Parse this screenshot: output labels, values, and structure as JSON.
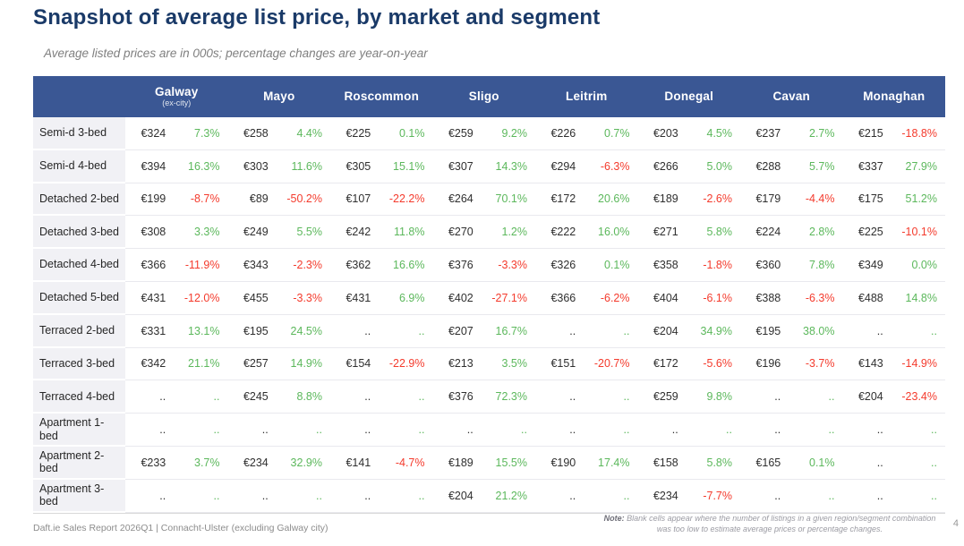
{
  "page": {
    "title": "Snapshot of average list price, by market and segment",
    "subtitle": "Average listed prices are in 000s; percentage changes are year-on-year",
    "footer_left": "Daft.ie Sales Report 2026Q1  | Connacht-Ulster (excluding Galway city)",
    "note_label": "Note:",
    "note_text": "Blank cells appear where the number of listings in a given region/segment combination was too low to estimate average prices or percentage changes.",
    "page_number": "4"
  },
  "colors": {
    "title": "#1a3a68",
    "header_bg": "#3a5794",
    "header_text": "#ffffff",
    "label_bg": "#f1f1f5",
    "price_text": "#2f2f2f",
    "positive": "#5cb85c",
    "negative": "#f43b2d",
    "footer_text": "#8c8c8c"
  },
  "chart_data": {
    "type": "table",
    "title": "Snapshot of average list price, by market and segment",
    "markets": [
      {
        "name": "Galway",
        "sub": "(ex-city)"
      },
      {
        "name": "Mayo",
        "sub": ""
      },
      {
        "name": "Roscommon",
        "sub": ""
      },
      {
        "name": "Sligo",
        "sub": ""
      },
      {
        "name": "Leitrim",
        "sub": ""
      },
      {
        "name": "Donegal",
        "sub": ""
      },
      {
        "name": "Cavan",
        "sub": ""
      },
      {
        "name": "Monaghan",
        "sub": ""
      }
    ],
    "rows": [
      {
        "label": "Semi-d 3-bed",
        "cells": [
          [
            "€324",
            "7.3%"
          ],
          [
            "€258",
            "4.4%"
          ],
          [
            "€225",
            "0.1%"
          ],
          [
            "€259",
            "9.2%"
          ],
          [
            "€226",
            "0.7%"
          ],
          [
            "€203",
            "4.5%"
          ],
          [
            "€237",
            "2.7%"
          ],
          [
            "€215",
            "-18.8%"
          ]
        ]
      },
      {
        "label": "Semi-d 4-bed",
        "cells": [
          [
            "€394",
            "16.3%"
          ],
          [
            "€303",
            "11.6%"
          ],
          [
            "€305",
            "15.1%"
          ],
          [
            "€307",
            "14.3%"
          ],
          [
            "€294",
            "-6.3%"
          ],
          [
            "€266",
            "5.0%"
          ],
          [
            "€288",
            "5.7%"
          ],
          [
            "€337",
            "27.9%"
          ]
        ]
      },
      {
        "label": "Detached 2-bed",
        "cells": [
          [
            "€199",
            "-8.7%"
          ],
          [
            "€89",
            "-50.2%"
          ],
          [
            "€107",
            "-22.2%"
          ],
          [
            "€264",
            "70.1%"
          ],
          [
            "€172",
            "20.6%"
          ],
          [
            "€189",
            "-2.6%"
          ],
          [
            "€179",
            "-4.4%"
          ],
          [
            "€175",
            "51.2%"
          ]
        ]
      },
      {
        "label": "Detached 3-bed",
        "cells": [
          [
            "€308",
            "3.3%"
          ],
          [
            "€249",
            "5.5%"
          ],
          [
            "€242",
            "11.8%"
          ],
          [
            "€270",
            "1.2%"
          ],
          [
            "€222",
            "16.0%"
          ],
          [
            "€271",
            "5.8%"
          ],
          [
            "€224",
            "2.8%"
          ],
          [
            "€225",
            "-10.1%"
          ]
        ]
      },
      {
        "label": "Detached 4-bed",
        "cells": [
          [
            "€366",
            "-11.9%"
          ],
          [
            "€343",
            "-2.3%"
          ],
          [
            "€362",
            "16.6%"
          ],
          [
            "€376",
            "-3.3%"
          ],
          [
            "€326",
            "0.1%"
          ],
          [
            "€358",
            "-1.8%"
          ],
          [
            "€360",
            "7.8%"
          ],
          [
            "€349",
            "0.0%"
          ]
        ]
      },
      {
        "label": "Detached 5-bed",
        "cells": [
          [
            "€431",
            "-12.0%"
          ],
          [
            "€455",
            "-3.3%"
          ],
          [
            "€431",
            "6.9%"
          ],
          [
            "€402",
            "-27.1%"
          ],
          [
            "€366",
            "-6.2%"
          ],
          [
            "€404",
            "-6.1%"
          ],
          [
            "€388",
            "-6.3%"
          ],
          [
            "€488",
            "14.8%"
          ]
        ]
      },
      {
        "label": "Terraced 2-bed",
        "cells": [
          [
            "€331",
            "13.1%"
          ],
          [
            "€195",
            "24.5%"
          ],
          [
            "..",
            ".."
          ],
          [
            "€207",
            "16.7%"
          ],
          [
            "..",
            ".."
          ],
          [
            "€204",
            "34.9%"
          ],
          [
            "€195",
            "38.0%"
          ],
          [
            "..",
            ".."
          ]
        ]
      },
      {
        "label": "Terraced 3-bed",
        "cells": [
          [
            "€342",
            "21.1%"
          ],
          [
            "€257",
            "14.9%"
          ],
          [
            "€154",
            "-22.9%"
          ],
          [
            "€213",
            "3.5%"
          ],
          [
            "€151",
            "-20.7%"
          ],
          [
            "€172",
            "-5.6%"
          ],
          [
            "€196",
            "-3.7%"
          ],
          [
            "€143",
            "-14.9%"
          ]
        ]
      },
      {
        "label": "Terraced 4-bed",
        "cells": [
          [
            "..",
            ".."
          ],
          [
            "€245",
            "8.8%"
          ],
          [
            "..",
            ".."
          ],
          [
            "€376",
            "72.3%"
          ],
          [
            "..",
            ".."
          ],
          [
            "€259",
            "9.8%"
          ],
          [
            "..",
            ".."
          ],
          [
            "€204",
            "-23.4%"
          ]
        ]
      },
      {
        "label": "Apartment 1-bed",
        "cells": [
          [
            "..",
            ".."
          ],
          [
            "..",
            ".."
          ],
          [
            "..",
            ".."
          ],
          [
            "..",
            ".."
          ],
          [
            "..",
            ".."
          ],
          [
            "..",
            ".."
          ],
          [
            "..",
            ".."
          ],
          [
            "..",
            ".."
          ]
        ]
      },
      {
        "label": "Apartment 2-bed",
        "cells": [
          [
            "€233",
            "3.7%"
          ],
          [
            "€234",
            "32.9%"
          ],
          [
            "€141",
            "-4.7%"
          ],
          [
            "€189",
            "15.5%"
          ],
          [
            "€190",
            "17.4%"
          ],
          [
            "€158",
            "5.8%"
          ],
          [
            "€165",
            "0.1%"
          ],
          [
            "..",
            ".."
          ]
        ]
      },
      {
        "label": "Apartment 3-bed",
        "cells": [
          [
            "..",
            ".."
          ],
          [
            "..",
            ".."
          ],
          [
            "..",
            ".."
          ],
          [
            "€204",
            "21.2%"
          ],
          [
            "..",
            ".."
          ],
          [
            "€234",
            "-7.7%"
          ],
          [
            "..",
            ".."
          ],
          [
            "..",
            ".."
          ]
        ]
      }
    ]
  }
}
